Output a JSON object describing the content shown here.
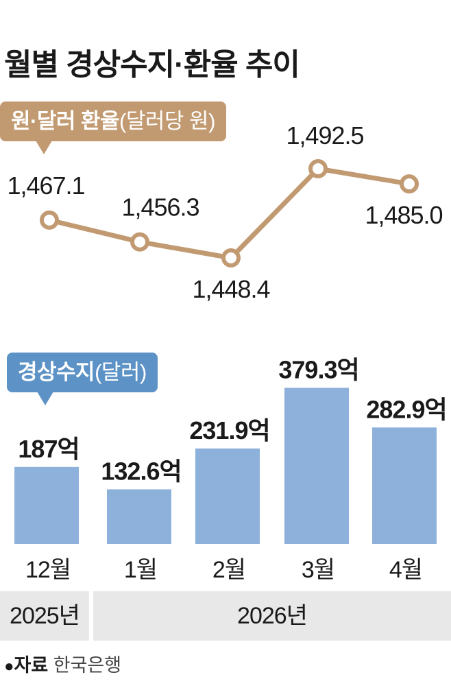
{
  "title": "월별 경상수지·환율 추이",
  "fx_tag": {
    "bold": "원·달러 환율",
    "light": "(달러당 원)"
  },
  "bop_tag": {
    "bold": "경상수지",
    "light": "(달러)"
  },
  "year_labels": [
    "2025년",
    "2026년"
  ],
  "source": {
    "bullet": "●",
    "label": "자료",
    "org": "한국은행"
  },
  "colors": {
    "line": "#c29a72",
    "bar": "#8eb1db",
    "fx_tag": "#c29a72",
    "bop_tag": "#5c92c6"
  },
  "chart_data": [
    {
      "type": "line",
      "categories": [
        "12월",
        "1월",
        "2월",
        "3월",
        "4월"
      ],
      "values": [
        1467.1,
        1456.3,
        1448.4,
        1492.5,
        1485.0
      ],
      "data_labels": [
        "1,467.1",
        "1,456.3",
        "1,448.4",
        "1,492.5",
        "1,485.0"
      ],
      "unit": "달러당 원"
    },
    {
      "type": "bar",
      "categories": [
        "12월",
        "1월",
        "2월",
        "3월",
        "4월"
      ],
      "values": [
        187,
        132.6,
        231.9,
        379.3,
        282.9
      ],
      "data_labels": [
        "187억",
        "132.6억",
        "231.9억",
        "379.3억",
        "282.9억"
      ],
      "unit": "억 달러"
    }
  ]
}
